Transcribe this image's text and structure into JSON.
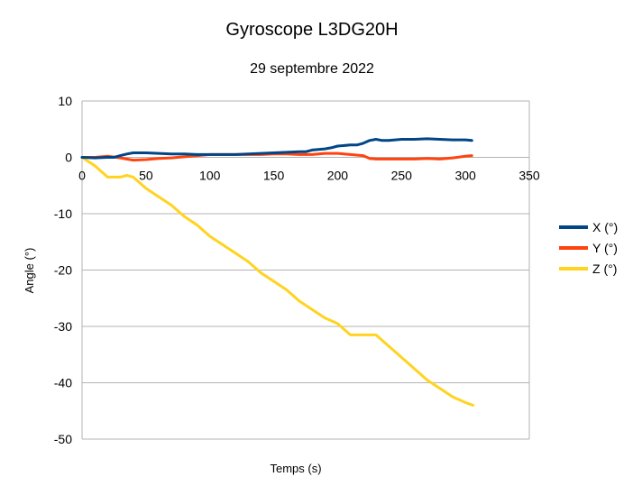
{
  "chart_data": {
    "type": "line",
    "title": "Gyroscope L3DG20H",
    "subtitle": "29 septembre 2022",
    "xlabel": "Temps (s)",
    "ylabel": "Angle (°)",
    "xlim": [
      0,
      350
    ],
    "ylim": [
      -50,
      10
    ],
    "xticks": [
      0,
      50,
      100,
      150,
      200,
      250,
      300,
      350
    ],
    "yticks": [
      10,
      0,
      -10,
      -20,
      -30,
      -40,
      -50
    ],
    "grid": "horizontal",
    "legend_position": "right",
    "series": [
      {
        "name": "X (°)",
        "color": "#004586",
        "x": [
          0,
          10,
          20,
          25,
          30,
          35,
          40,
          50,
          60,
          70,
          80,
          90,
          100,
          110,
          120,
          130,
          140,
          150,
          160,
          170,
          175,
          180,
          190,
          195,
          200,
          210,
          215,
          220,
          225,
          230,
          235,
          240,
          250,
          260,
          270,
          280,
          290,
          300,
          305
        ],
        "y": [
          0,
          -0.1,
          0,
          0,
          0.3,
          0.6,
          0.8,
          0.8,
          0.7,
          0.6,
          0.6,
          0.5,
          0.5,
          0.5,
          0.5,
          0.6,
          0.7,
          0.8,
          0.9,
          1.0,
          1.0,
          1.3,
          1.5,
          1.7,
          2.0,
          2.2,
          2.2,
          2.5,
          3.0,
          3.2,
          3.0,
          3.0,
          3.2,
          3.2,
          3.3,
          3.2,
          3.1,
          3.1,
          3.0
        ]
      },
      {
        "name": "Y (°)",
        "color": "#ff420e",
        "x": [
          0,
          10,
          20,
          30,
          40,
          50,
          60,
          70,
          80,
          90,
          100,
          110,
          120,
          130,
          140,
          150,
          160,
          170,
          180,
          190,
          200,
          210,
          220,
          225,
          230,
          240,
          250,
          260,
          270,
          280,
          290,
          300,
          305
        ],
        "y": [
          0,
          0,
          0.2,
          -0.1,
          -0.5,
          -0.4,
          -0.2,
          -0.1,
          0.1,
          0.3,
          0.5,
          0.5,
          0.5,
          0.5,
          0.5,
          0.6,
          0.6,
          0.5,
          0.5,
          0.7,
          0.7,
          0.5,
          0.3,
          -0.2,
          -0.3,
          -0.3,
          -0.3,
          -0.3,
          -0.2,
          -0.3,
          -0.1,
          0.2,
          0.3
        ]
      },
      {
        "name": "Z (°)",
        "color": "#ffd320",
        "x": [
          0,
          10,
          20,
          30,
          35,
          40,
          50,
          60,
          70,
          80,
          90,
          100,
          110,
          120,
          130,
          140,
          150,
          160,
          170,
          180,
          190,
          200,
          210,
          220,
          230,
          235,
          240,
          250,
          260,
          270,
          280,
          290,
          300,
          306
        ],
        "y": [
          0,
          -1.5,
          -3.5,
          -3.5,
          -3.2,
          -3.5,
          -5.5,
          -7.0,
          -8.5,
          -10.5,
          -12.0,
          -14.0,
          -15.5,
          -17.0,
          -18.5,
          -20.5,
          -22.0,
          -23.5,
          -25.5,
          -27.0,
          -28.5,
          -29.5,
          -31.5,
          -31.5,
          -31.5,
          -32.5,
          -33.5,
          -35.5,
          -37.5,
          -39.5,
          -41.0,
          -42.5,
          -43.5,
          -44.0
        ]
      }
    ]
  }
}
